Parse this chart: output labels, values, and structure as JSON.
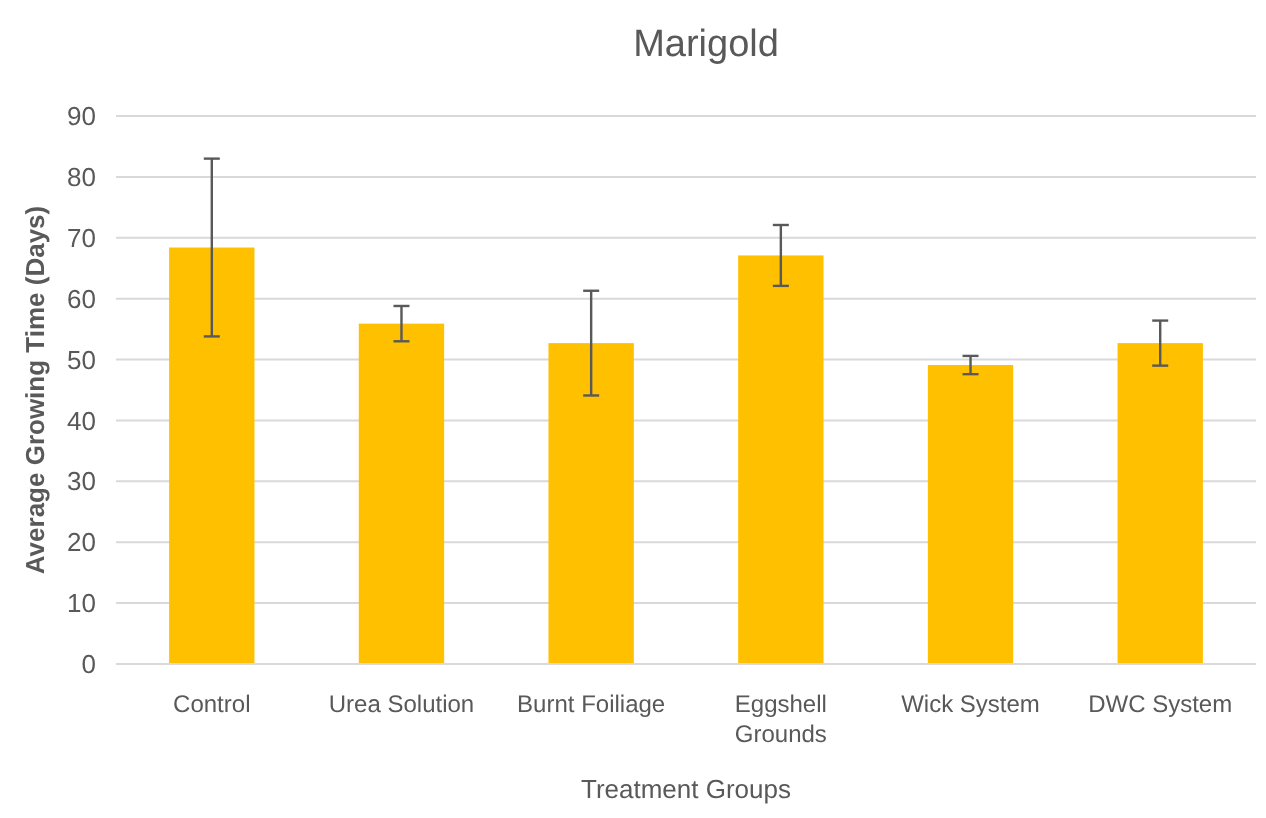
{
  "chart_data": {
    "type": "bar",
    "title": "Marigold",
    "xlabel": "Treatment Groups",
    "ylabel": "Average Growing Time (Days)",
    "categories": [
      "Control",
      "Urea Solution",
      "Burnt Foiliage",
      "Eggshell Grounds",
      "Wick System",
      "DWC System"
    ],
    "values": [
      68.4,
      55.9,
      52.7,
      67.1,
      49.1,
      52.7
    ],
    "errors": [
      14.6,
      2.9,
      8.6,
      5.0,
      1.5,
      3.7
    ],
    "color": "#ffc000",
    "ylim": [
      0,
      90
    ],
    "yticks": [
      0,
      10,
      20,
      30,
      40,
      50,
      60,
      70,
      80,
      90
    ],
    "grid": "y"
  }
}
